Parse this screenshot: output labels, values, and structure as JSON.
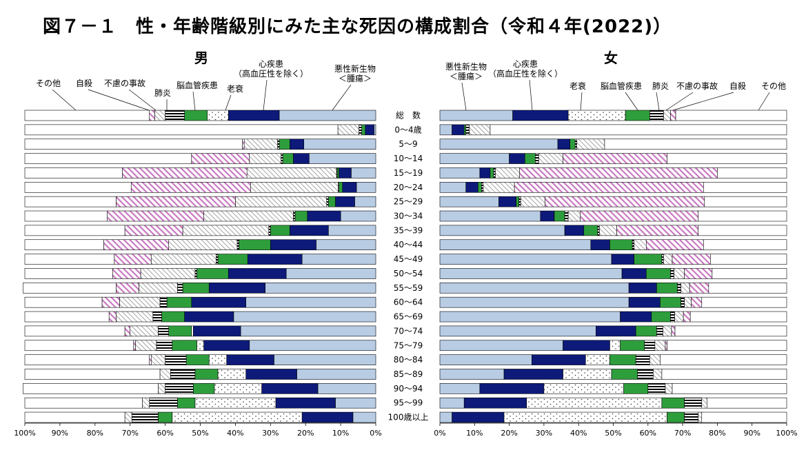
{
  "title": "図７－１　性・年齢階級別にみた主な死因の構成割合（令和４年(2022)）",
  "colors": {
    "cancer": "#b8cce4",
    "heart": "#0d1a7a",
    "senility": "#ffffff",
    "cerebro": "#2e9e3c",
    "pneumonia": "#000000",
    "accident": "#ffffff",
    "suicide": "#c878c0",
    "other": "#ffffff",
    "outline": "#000000"
  },
  "chart_data": {
    "type": "bar",
    "stacked": true,
    "orientation": "horizontal",
    "xlim": [
      0,
      100
    ],
    "xticks": [
      "0%",
      "10%",
      "20%",
      "30%",
      "40%",
      "50%",
      "60%",
      "70%",
      "80%",
      "90%",
      "100%"
    ],
    "categories": [
      "総　数",
      "0～4歳",
      "5～9",
      "10～14",
      "15～19",
      "20～24",
      "25～29",
      "30～34",
      "35～39",
      "40～44",
      "45～49",
      "50～54",
      "55～59",
      "60～64",
      "65～69",
      "70～74",
      "75～79",
      "80～84",
      "85～89",
      "90～94",
      "95～99",
      "100歳以上"
    ],
    "cause_keys": [
      "cancer",
      "heart",
      "senility",
      "cerebro",
      "pneumonia",
      "accident",
      "suicide",
      "other"
    ],
    "panels": [
      {
        "key": "male",
        "label": "男",
        "direction": "right-to-left",
        "legend": [
          {
            "key": "other",
            "text": [
              "その他"
            ]
          },
          {
            "key": "suicide",
            "text": [
              "自殺"
            ]
          },
          {
            "key": "accident",
            "text": [
              "不慮の事故"
            ]
          },
          {
            "key": "pneumonia",
            "text": [
              "肺炎"
            ]
          },
          {
            "key": "cerebro",
            "text": [
              "脳血管疾患"
            ]
          },
          {
            "key": "senility",
            "text": [
              "老衰"
            ]
          },
          {
            "key": "heart",
            "text": [
              "心疾患",
              "（高血圧性を除く）"
            ]
          },
          {
            "key": "cancer",
            "text": [
              "悪性新生物",
              "＜腫瘍＞"
            ]
          }
        ],
        "series": [
          {
            "key": "cancer",
            "name": "悪性新生物＜腫瘍＞",
            "values": [
              27.5,
              0.5,
              20.5,
              19,
              7,
              5.5,
              6,
              10,
              13.5,
              17,
              21,
              25.5,
              31.5,
              37,
              40.5,
              38.5,
              36,
              29,
              22.5,
              16.5,
              11.5,
              6.5
            ]
          },
          {
            "key": "heart",
            "name": "心疾患（高血圧性を除く）",
            "values": [
              14.5,
              2.5,
              4,
              4.5,
              3.5,
              4,
              5.5,
              9.5,
              11,
              13,
              15.5,
              16.5,
              16,
              15.5,
              14,
              13.5,
              13,
              13.5,
              14.5,
              16,
              17,
              14.5
            ]
          },
          {
            "key": "senility",
            "name": "老衰",
            "values": [
              6,
              0,
              0,
              0,
              0,
              0,
              0,
              0,
              0,
              0,
              0,
              0,
              0,
              0,
              0,
              0.5,
              2,
              5,
              8,
              13.5,
              23,
              37
            ]
          },
          {
            "key": "cerebro",
            "name": "脳血管疾患",
            "values": [
              6.5,
              1,
              3,
              3,
              0.5,
              1,
              2,
              3.5,
              5.5,
              9,
              8.5,
              9,
              7.5,
              7,
              6.5,
              6.5,
              7,
              6.5,
              6.5,
              6,
              5,
              4
            ]
          },
          {
            "key": "pneumonia",
            "name": "肺炎",
            "values": [
              5.5,
              0.8,
              0.5,
              0.5,
              0.2,
              0.2,
              0.5,
              0.5,
              0.5,
              0.5,
              0.5,
              0.5,
              1.5,
              2,
              2.5,
              3,
              4.5,
              6,
              7,
              8,
              8,
              7.5
            ]
          },
          {
            "key": "accident",
            "name": "不慮の事故",
            "values": [
              3,
              6,
              9.5,
              9,
              25.5,
              25,
              26,
              25.5,
              24.5,
              19.5,
              18.5,
              15.5,
              11,
              11.5,
              10.5,
              8,
              6,
              4,
              3,
              2,
              2,
              2
            ]
          },
          {
            "key": "suicide",
            "name": "自殺",
            "values": [
              1.5,
              0,
              0.5,
              16.5,
              35.5,
              34,
              34,
              27.5,
              16.5,
              18.5,
              10.5,
              8,
              6.5,
              5,
              2,
              1.5,
              0.5,
              0.5,
              0,
              0,
              0,
              0
            ]
          },
          {
            "key": "other",
            "name": "その他",
            "values": [
              35.5,
              89.2,
              62,
              47.5,
              27.8,
              30.3,
              26,
              23.5,
              28.5,
              22.5,
              25.5,
              25,
              26.5,
              22,
              24,
              28.5,
              31,
              35.5,
              38.5,
              38.5,
              33.5,
              28.5
            ]
          }
        ]
      },
      {
        "key": "female",
        "label": "女",
        "direction": "left-to-right",
        "legend": [
          {
            "key": "cancer",
            "text": [
              "悪性新生物",
              "＜腫瘍＞"
            ]
          },
          {
            "key": "heart",
            "text": [
              "心疾患",
              "（高血圧性を除く）"
            ]
          },
          {
            "key": "senility",
            "text": [
              "老衰"
            ]
          },
          {
            "key": "cerebro",
            "text": [
              "脳血管疾患"
            ]
          },
          {
            "key": "pneumonia",
            "text": [
              "肺炎"
            ]
          },
          {
            "key": "accident",
            "text": [
              "不慮の事故"
            ]
          },
          {
            "key": "suicide",
            "text": [
              "自殺"
            ]
          },
          {
            "key": "other",
            "text": [
              "その他"
            ]
          }
        ],
        "series": [
          {
            "key": "cancer",
            "name": "悪性新生物＜腫瘍＞",
            "values": [
              21,
              3.5,
              34,
              20,
              11.5,
              7.5,
              17,
              29,
              36,
              43.5,
              49.5,
              52.5,
              54.5,
              54.5,
              52,
              45,
              35.5,
              26.5,
              18.5,
              11.5,
              7,
              3.5
            ]
          },
          {
            "key": "heart",
            "name": "心疾患（高血圧性を除く）",
            "values": [
              16,
              3.5,
              3.5,
              4.5,
              3,
              3.5,
              5,
              4,
              5.5,
              5.5,
              6.5,
              7,
              8,
              9,
              9,
              11.5,
              13.5,
              15.5,
              17,
              18.5,
              18,
              15
            ]
          },
          {
            "key": "senility",
            "name": "老衰",
            "values": [
              16.5,
              0,
              0,
              0,
              0,
              0,
              0,
              0,
              0,
              0,
              0,
              0,
              0,
              0,
              0,
              0,
              3,
              7,
              14,
              23,
              39,
              47
            ]
          },
          {
            "key": "cerebro",
            "name": "脳血管疾患",
            "values": [
              7,
              0.5,
              1.5,
              3,
              1,
              1,
              0.8,
              3,
              4,
              6.5,
              8,
              7,
              6,
              6,
              5.5,
              6,
              7,
              7.5,
              7.5,
              7,
              6.5,
              5
            ]
          },
          {
            "key": "pneumonia",
            "name": "肺炎",
            "values": [
              4,
              1,
              0.5,
              1,
              0.5,
              0.5,
              0.5,
              1,
              0.5,
              0.5,
              0.5,
              1,
              1,
              1,
              1.2,
              1.8,
              3,
              4,
              4.5,
              5,
              5,
              4
            ]
          },
          {
            "key": "accident",
            "name": "不慮の事故",
            "values": [
              2,
              6,
              8,
              7,
              7,
              9,
              7,
              3.5,
              5,
              3.5,
              2.5,
              3,
              2.5,
              2,
              2.5,
              2.5,
              3,
              3,
              2.5,
              2,
              1.5,
              1
            ]
          },
          {
            "key": "suicide",
            "name": "自殺",
            "values": [
              1.5,
              0,
              0,
              30,
              57,
              54.5,
              46,
              34,
              23.5,
              16.5,
              11,
              8,
              5.5,
              3,
              2,
              1,
              0.5,
              0,
              0,
              0,
              0,
              0
            ]
          },
          {
            "key": "other",
            "name": "その他",
            "values": [
              32,
              85.5,
              52.5,
              34.5,
              20,
              24,
              23.7,
              25.5,
              25.5,
              24,
              22,
              21.5,
              22.5,
              24.5,
              27.8,
              32.2,
              34.5,
              36.5,
              36,
              33,
              23,
              24.5
            ]
          }
        ]
      }
    ]
  }
}
